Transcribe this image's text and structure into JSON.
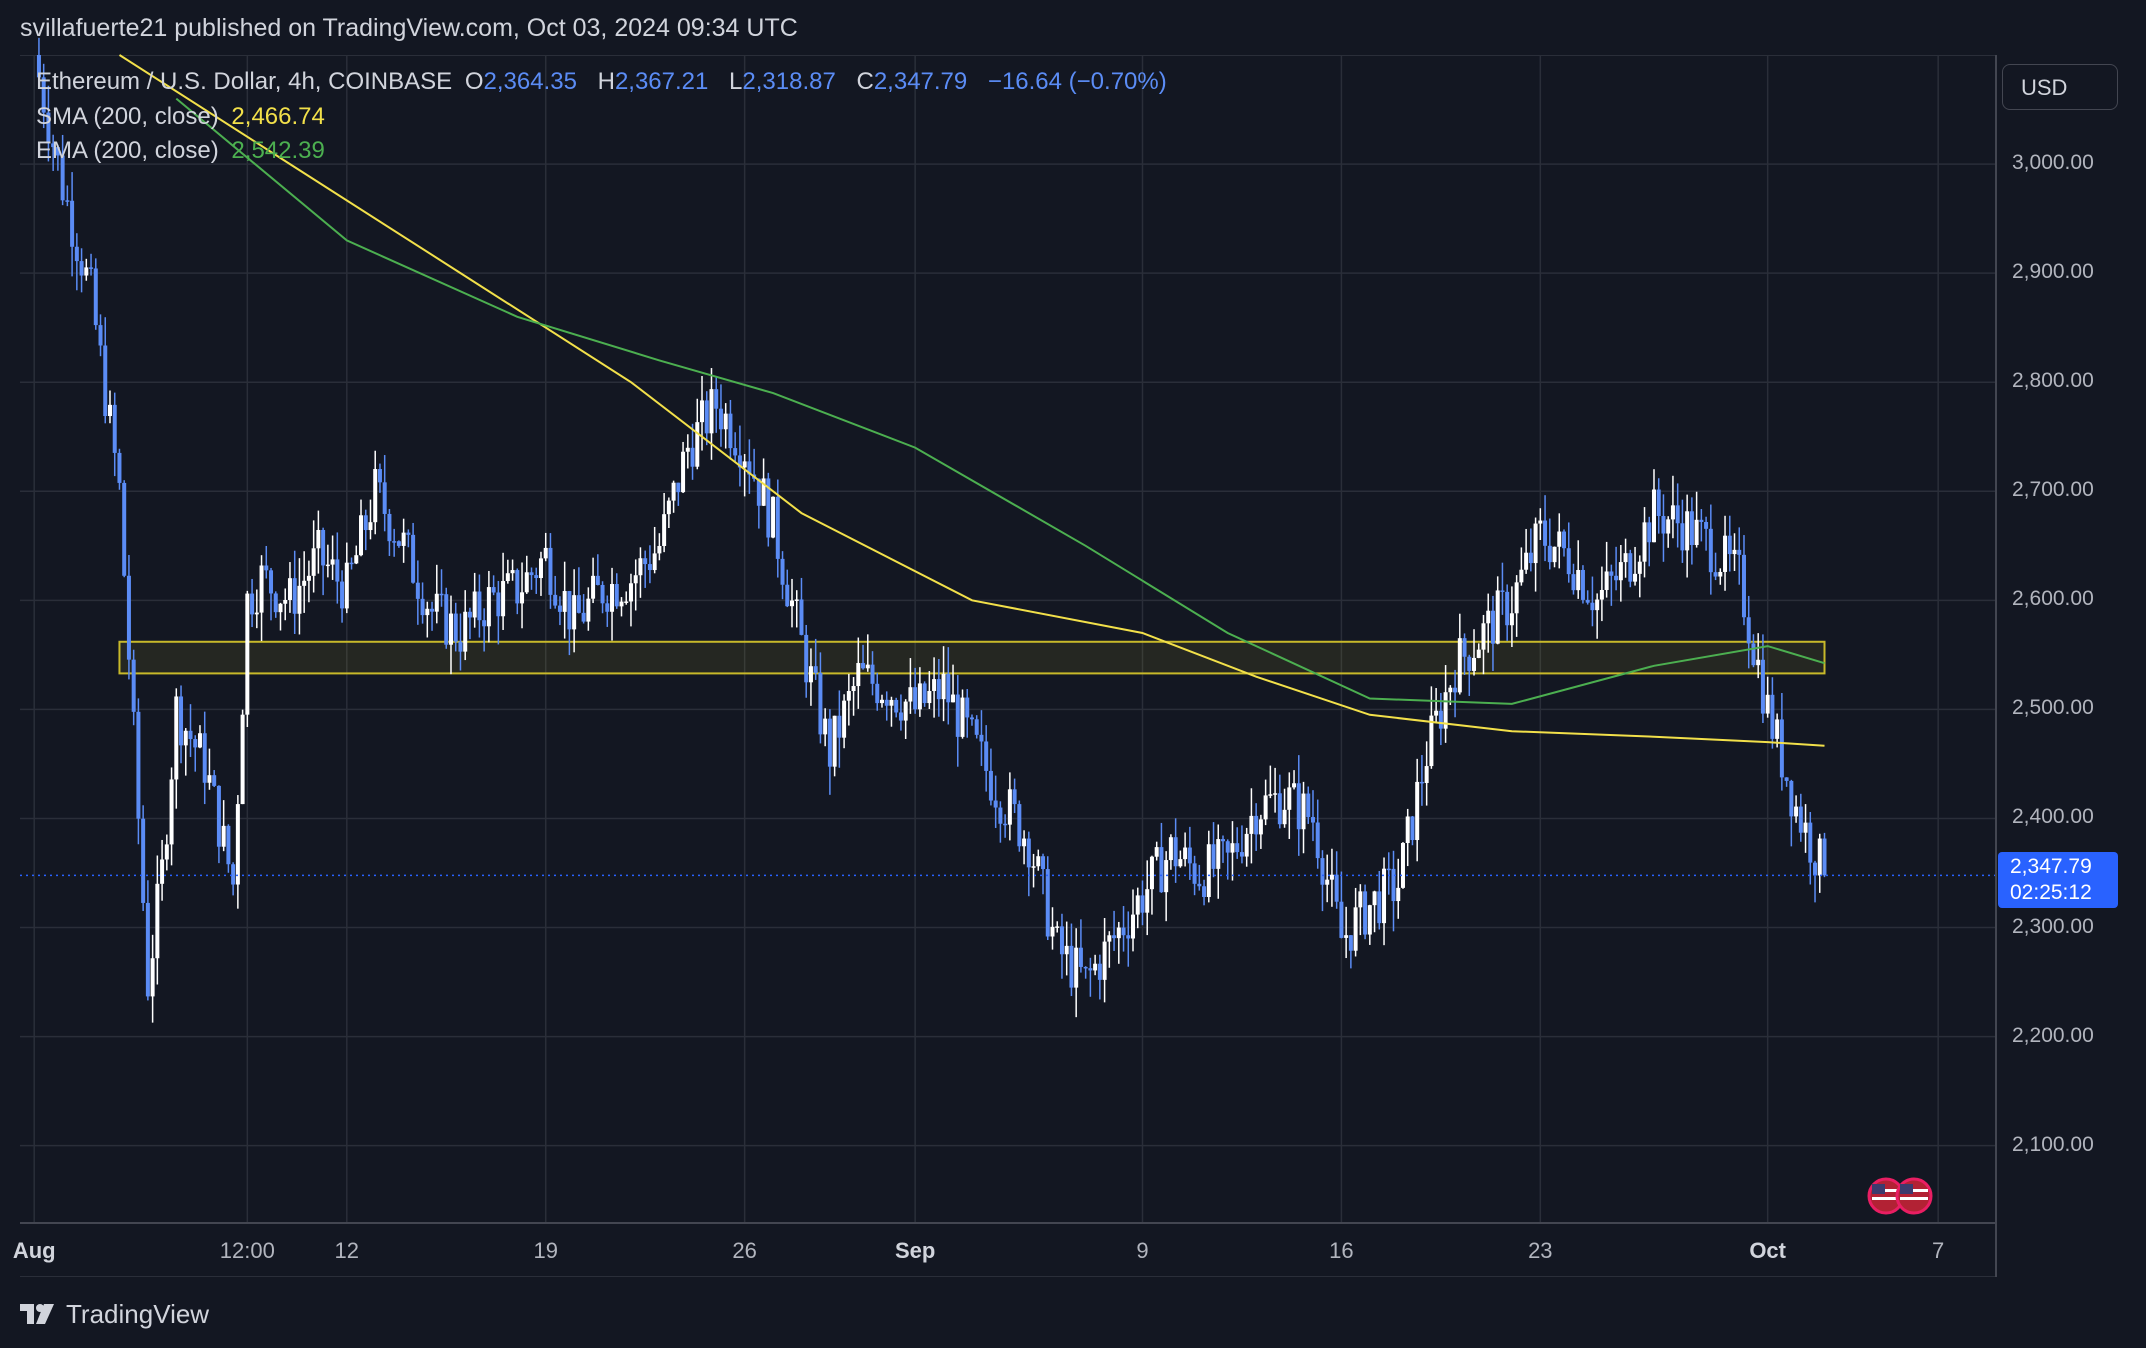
{
  "header": {
    "publisher": "svillafuerte21 published on TradingView.com, Oct 03, 2024 09:34 UTC"
  },
  "legend": {
    "symbol": "Ethereum / U.S. Dollar, 4h, COINBASE",
    "open_label": "O",
    "open": "2,364.35",
    "high_label": "H",
    "high": "2,367.21",
    "low_label": "L",
    "low": "2,318.87",
    "close_label": "C",
    "close": "2,347.79",
    "change": "−16.64 (−0.70%)",
    "sma_label": "SMA (200, close)",
    "sma_value": "2,466.74",
    "ema_label": "EMA (200, close)",
    "ema_value": "2,542.39"
  },
  "price_scale": {
    "currency": "USD",
    "current_price": "2,347.79",
    "countdown": "02:25:12",
    "ticks": [
      "3,000.00",
      "2,900.00",
      "2,800.00",
      "2,700.00",
      "2,600.00",
      "2,500.00",
      "2,400.00",
      "2,300.00",
      "2,200.00",
      "2,100.00"
    ]
  },
  "time_scale": {
    "ticks": [
      "Aug",
      "12:00",
      "12",
      "19",
      "26",
      "Sep",
      "9",
      "16",
      "23",
      "Oct",
      "7"
    ]
  },
  "footer": {
    "brand": "TradingView"
  },
  "colors": {
    "background": "#131722",
    "grid": "#2a2e39",
    "candle": "#5b8cf5",
    "candle_up": "#ffffff",
    "sma": "#f2e04a",
    "ema": "#4caf50",
    "zone": "#c8b92a"
  },
  "chart_data": {
    "type": "candlestick",
    "title": "Ethereum / U.S. Dollar, 4h, COINBASE",
    "ylim": [
      2030,
      3100
    ],
    "y_ticks": [
      3000,
      2900,
      2800,
      2700,
      2600,
      2500,
      2400,
      2300,
      2200,
      2100
    ],
    "x_ticks": [
      {
        "label": "Aug",
        "date": "2024-08-01"
      },
      {
        "label": "12:00",
        "date": "2024-08-08 12:00"
      },
      {
        "label": "12",
        "date": "2024-08-12"
      },
      {
        "label": "19",
        "date": "2024-08-19"
      },
      {
        "label": "26",
        "date": "2024-08-26"
      },
      {
        "label": "Sep",
        "date": "2024-09-01"
      },
      {
        "label": "9",
        "date": "2024-09-09"
      },
      {
        "label": "16",
        "date": "2024-09-16"
      },
      {
        "label": "23",
        "date": "2024-09-23"
      },
      {
        "label": "Oct",
        "date": "2024-10-01"
      },
      {
        "label": "7",
        "date": "2024-10-07"
      }
    ],
    "last_price": 2347.79,
    "support_zone": {
      "low": 2533,
      "high": 2562,
      "from": "2024-08-04",
      "to": "2024-10-03"
    },
    "close_path": [
      [
        "2024-08-01",
        3100
      ],
      [
        "2024-08-02",
        2980
      ],
      [
        "2024-08-03",
        2880
      ],
      [
        "2024-08-04",
        2700
      ],
      [
        "2024-08-05",
        2250
      ],
      [
        "2024-08-05 12:00",
        2350
      ],
      [
        "2024-08-06",
        2500
      ],
      [
        "2024-08-07",
        2450
      ],
      [
        "2024-08-08",
        2340
      ],
      [
        "2024-08-08 12:00",
        2600
      ],
      [
        "2024-08-09",
        2620
      ],
      [
        "2024-08-10",
        2600
      ],
      [
        "2024-08-11",
        2640
      ],
      [
        "2024-08-12",
        2610
      ],
      [
        "2024-08-13",
        2700
      ],
      [
        "2024-08-14",
        2650
      ],
      [
        "2024-08-15",
        2590
      ],
      [
        "2024-08-16",
        2570
      ],
      [
        "2024-08-17",
        2600
      ],
      [
        "2024-08-18",
        2610
      ],
      [
        "2024-08-19",
        2640
      ],
      [
        "2024-08-20",
        2580
      ],
      [
        "2024-08-21",
        2610
      ],
      [
        "2024-08-22",
        2620
      ],
      [
        "2024-08-23",
        2650
      ],
      [
        "2024-08-24",
        2740
      ],
      [
        "2024-08-25",
        2780
      ],
      [
        "2024-08-26",
        2740
      ],
      [
        "2024-08-27",
        2670
      ],
      [
        "2024-08-28",
        2560
      ],
      [
        "2024-08-29",
        2460
      ],
      [
        "2024-08-30",
        2530
      ],
      [
        "2024-08-31",
        2520
      ],
      [
        "2024-09-01",
        2500
      ],
      [
        "2024-09-02",
        2520
      ],
      [
        "2024-09-03",
        2470
      ],
      [
        "2024-09-04",
        2420
      ],
      [
        "2024-09-05",
        2380
      ],
      [
        "2024-09-06",
        2280
      ],
      [
        "2024-09-07",
        2250
      ],
      [
        "2024-09-08",
        2290
      ],
      [
        "2024-09-09",
        2330
      ],
      [
        "2024-09-10",
        2370
      ],
      [
        "2024-09-11",
        2350
      ],
      [
        "2024-09-12",
        2360
      ],
      [
        "2024-09-13",
        2410
      ],
      [
        "2024-09-14",
        2420
      ],
      [
        "2024-09-15",
        2400
      ],
      [
        "2024-09-16",
        2290
      ],
      [
        "2024-09-17",
        2320
      ],
      [
        "2024-09-18",
        2340
      ],
      [
        "2024-09-19",
        2460
      ],
      [
        "2024-09-20",
        2540
      ],
      [
        "2024-09-21",
        2570
      ],
      [
        "2024-09-22",
        2600
      ],
      [
        "2024-09-23",
        2660
      ],
      [
        "2024-09-24",
        2640
      ],
      [
        "2024-09-25",
        2600
      ],
      [
        "2024-09-26",
        2630
      ],
      [
        "2024-09-27",
        2680
      ],
      [
        "2024-09-28",
        2670
      ],
      [
        "2024-09-29",
        2650
      ],
      [
        "2024-09-30",
        2620
      ],
      [
        "2024-10-01",
        2500
      ],
      [
        "2024-10-02",
        2410
      ],
      [
        "2024-10-03",
        2347.79
      ]
    ],
    "series": [
      {
        "name": "SMA (200, close)",
        "type": "line",
        "values": [
          [
            "2024-08-04",
            3100
          ],
          [
            "2024-08-10",
            3000
          ],
          [
            "2024-08-16",
            2900
          ],
          [
            "2024-08-22",
            2800
          ],
          [
            "2024-08-28",
            2680
          ],
          [
            "2024-09-03",
            2600
          ],
          [
            "2024-09-09",
            2570
          ],
          [
            "2024-09-13",
            2530
          ],
          [
            "2024-09-17",
            2495
          ],
          [
            "2024-09-22",
            2480
          ],
          [
            "2024-09-27",
            2475
          ],
          [
            "2024-10-01",
            2470
          ],
          [
            "2024-10-03",
            2466.74
          ]
        ]
      },
      {
        "name": "EMA (200, close)",
        "type": "line",
        "values": [
          [
            "2024-08-06",
            3060
          ],
          [
            "2024-08-12",
            2930
          ],
          [
            "2024-08-18",
            2860
          ],
          [
            "2024-08-23",
            2820
          ],
          [
            "2024-08-27",
            2790
          ],
          [
            "2024-09-01",
            2740
          ],
          [
            "2024-09-07",
            2650
          ],
          [
            "2024-09-12",
            2570
          ],
          [
            "2024-09-17",
            2510
          ],
          [
            "2024-09-22",
            2505
          ],
          [
            "2024-09-27",
            2540
          ],
          [
            "2024-10-01",
            2558
          ],
          [
            "2024-10-03",
            2542.39
          ]
        ]
      }
    ]
  }
}
